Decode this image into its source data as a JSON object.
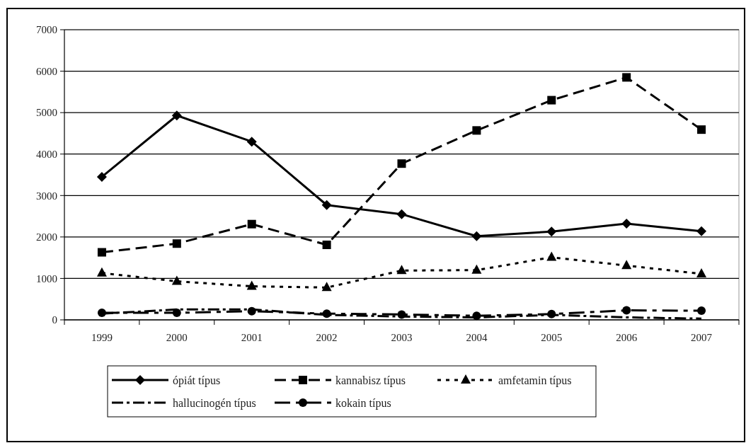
{
  "chart_data": {
    "type": "line",
    "categories": [
      "1999",
      "2000",
      "2001",
      "2002",
      "2003",
      "2004",
      "2005",
      "2006",
      "2007"
    ],
    "ylim": [
      0,
      7000
    ],
    "yticks": [
      0,
      1000,
      2000,
      3000,
      4000,
      5000,
      6000,
      7000
    ],
    "grid": "y",
    "legend": "bottom",
    "series": [
      {
        "name": "ópiát típus",
        "color": "#000000",
        "marker": "diamond",
        "line_style": "solid",
        "values": [
          3450,
          4930,
          4300,
          2770,
          2550,
          2020,
          2130,
          2320,
          2140
        ]
      },
      {
        "name": "kannabisz típus",
        "color": "#000000",
        "marker": "square",
        "line_style": "dashed",
        "values": [
          1630,
          1840,
          2310,
          1810,
          3770,
          4570,
          5300,
          5850,
          4590
        ]
      },
      {
        "name": "amfetamin típus",
        "color": "#000000",
        "marker": "triangle",
        "line_style": "dotted",
        "values": [
          1130,
          930,
          810,
          780,
          1190,
          1200,
          1510,
          1310,
          1110
        ]
      },
      {
        "name": "hallucinogén típus",
        "color": "#000000",
        "marker": "none",
        "line_style": "dashed",
        "values": [
          150,
          250,
          250,
          120,
          80,
          60,
          120,
          60,
          30
        ]
      },
      {
        "name": "kokain típus",
        "color": "#000000",
        "marker": "circle",
        "line_style": "dashed",
        "values": [
          170,
          170,
          210,
          150,
          130,
          100,
          140,
          230,
          220
        ]
      }
    ]
  }
}
